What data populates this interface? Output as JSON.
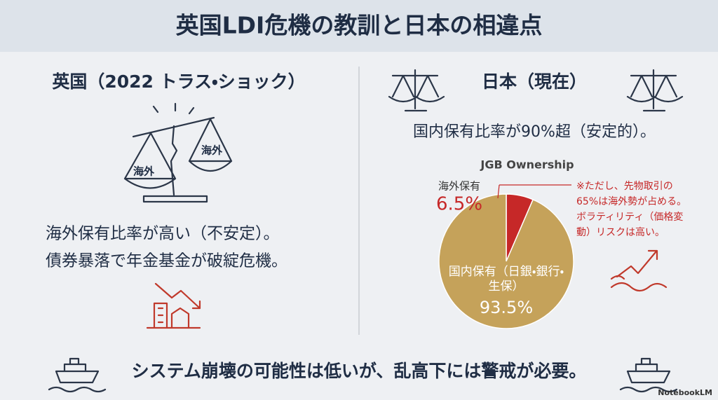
{
  "header": {
    "title": "英国LDI危機の教訓と日本の相違点"
  },
  "left": {
    "heading": "英国（2022 トラス・ショック）",
    "scale_labels": [
      "海外",
      "海外"
    ],
    "lines": [
      "海外保有比率が高い（不安定）。",
      "債券暴落で年金基金が破綻危機。"
    ]
  },
  "right": {
    "heading": "日本（現在）",
    "text": "国内保有比率が90%超（安定的）。"
  },
  "chart_data": {
    "type": "pie",
    "title": "JGB Ownership",
    "categories": [
      "海外保有",
      "国内保有（日銀・銀行・生保）"
    ],
    "values": [
      6.5,
      93.5
    ],
    "value_labels": [
      "6.5%",
      "93.5%"
    ],
    "colors": [
      "#c62828",
      "#c5a25a"
    ],
    "annotations": [
      "※ただし、先物取引の",
      "65%は海外勢が占める。",
      "ボラティリティ（価格変",
      "動）リスクは高い。"
    ]
  },
  "footer": {
    "text": "システム崩壊の可能性は低いが、乱高下には警戒が必要。",
    "brand": "NotebookLM"
  }
}
